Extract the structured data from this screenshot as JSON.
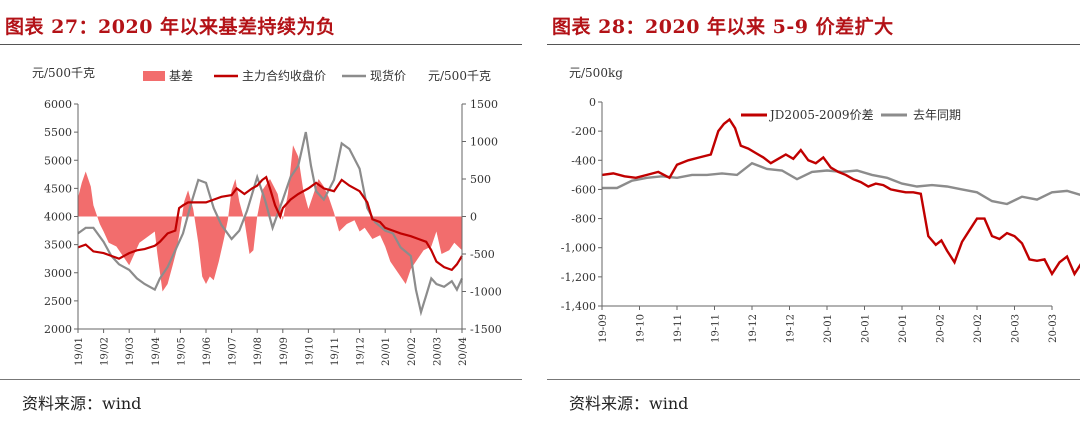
{
  "chart_data": [
    {
      "type": "area+line",
      "title": "图表 27：2020 年以来基差持续为负",
      "ylabel_left": "元/500千克",
      "ylabel_right": "元/500千克",
      "ylim_left": [
        2000,
        6000
      ],
      "yticks_left": [
        2000,
        2500,
        3000,
        3500,
        4000,
        4500,
        5000,
        5500,
        6000
      ],
      "ylim_right": [
        -1500,
        1500
      ],
      "yticks_right": [
        -1500,
        -1000,
        -500,
        0,
        500,
        1000,
        1500
      ],
      "x_ticks": [
        "19/01",
        "19/02",
        "19/03",
        "19/04",
        "19/05",
        "19/06",
        "19/07",
        "19/08",
        "19/09",
        "19/10",
        "19/11",
        "19/12",
        "20/01",
        "20/02",
        "20/03",
        "20/04"
      ],
      "legend_position": "top",
      "colors": {
        "basis": "#f26d6d",
        "futures": "#c00000",
        "spot": "#8c8c8c"
      },
      "series": [
        {
          "name": "基差",
          "axis": "right",
          "kind": "area",
          "x": [
            0,
            0.15,
            0.3,
            0.5,
            0.6,
            0.85,
            1.0,
            1.2,
            1.5,
            1.8,
            2.0,
            2.2,
            2.4,
            2.6,
            2.8,
            3.0,
            3.1,
            3.3,
            3.5,
            3.7,
            3.85,
            4.0,
            4.15,
            4.3,
            4.5,
            4.7,
            4.85,
            5.0,
            5.15,
            5.3,
            5.5,
            5.7,
            5.85,
            6.0,
            6.15,
            6.3,
            6.5,
            6.7,
            6.85,
            7.0,
            7.2,
            7.5,
            7.8,
            8.0,
            8.2,
            8.4,
            8.6,
            8.8,
            9.0,
            9.2,
            9.4,
            9.6,
            9.8,
            10.0,
            10.2,
            10.5,
            10.8,
            11.0,
            11.2,
            11.5,
            11.8,
            12.0,
            12.2,
            12.5,
            12.8,
            13.0,
            13.2,
            13.5,
            13.8,
            14.0,
            14.2,
            14.5,
            14.7,
            15.0
          ],
          "values": [
            250,
            450,
            600,
            400,
            150,
            -100,
            -200,
            -350,
            -400,
            -550,
            -650,
            -500,
            -350,
            -300,
            -250,
            -200,
            -500,
            -1000,
            -900,
            -650,
            -450,
            -150,
            200,
            350,
            100,
            -350,
            -800,
            -900,
            -800,
            -850,
            -600,
            -300,
            -50,
            350,
            500,
            200,
            -50,
            -500,
            -450,
            0,
            350,
            500,
            300,
            -50,
            300,
            950,
            800,
            350,
            100,
            300,
            500,
            400,
            250,
            50,
            -200,
            -100,
            -50,
            -200,
            -150,
            -300,
            -250,
            -400,
            -600,
            -750,
            -900,
            -700,
            -600,
            -450,
            -400,
            -200,
            -500,
            -450,
            -350,
            -450
          ]
        },
        {
          "name": "主力合约收盘价",
          "axis": "left",
          "kind": "line",
          "x": [
            0,
            0.3,
            0.6,
            1.0,
            1.3,
            1.6,
            2.0,
            2.3,
            2.6,
            3.0,
            3.2,
            3.5,
            3.8,
            3.95,
            4.1,
            4.3,
            4.6,
            5.0,
            5.3,
            5.6,
            6.0,
            6.2,
            6.5,
            6.8,
            7.0,
            7.2,
            7.35,
            7.5,
            7.7,
            7.9,
            8.0,
            8.3,
            8.6,
            9.0,
            9.3,
            9.6,
            10.0,
            10.3,
            10.6,
            11.0,
            11.3,
            11.5,
            11.8,
            12.0,
            12.3,
            12.6,
            13.0,
            13.3,
            13.6,
            13.8,
            14.0,
            14.3,
            14.6,
            14.8,
            15.0
          ],
          "values": [
            3450,
            3500,
            3380,
            3350,
            3300,
            3250,
            3350,
            3400,
            3420,
            3480,
            3550,
            3700,
            3750,
            4150,
            4200,
            4250,
            4250,
            4250,
            4300,
            4350,
            4380,
            4500,
            4400,
            4500,
            4550,
            4650,
            4700,
            4500,
            4200,
            4000,
            4150,
            4300,
            4400,
            4500,
            4600,
            4500,
            4450,
            4650,
            4550,
            4450,
            4250,
            3950,
            3900,
            3800,
            3750,
            3700,
            3650,
            3600,
            3550,
            3400,
            3200,
            3100,
            3050,
            3150,
            3300
          ]
        },
        {
          "name": "现货价",
          "axis": "left",
          "kind": "line",
          "x": [
            0,
            0.3,
            0.6,
            1.0,
            1.3,
            1.6,
            2.0,
            2.3,
            2.6,
            3.0,
            3.2,
            3.5,
            3.8,
            4.1,
            4.4,
            4.7,
            5.0,
            5.3,
            5.6,
            6.0,
            6.3,
            6.6,
            7.0,
            7.3,
            7.6,
            8.0,
            8.3,
            8.6,
            8.9,
            9.1,
            9.3,
            9.6,
            10.0,
            10.3,
            10.6,
            11.0,
            11.3,
            11.6,
            12.0,
            12.3,
            12.6,
            13.0,
            13.2,
            13.4,
            13.6,
            13.8,
            14.0,
            14.3,
            14.6,
            14.8,
            15.0
          ],
          "values": [
            3700,
            3800,
            3800,
            3550,
            3300,
            3150,
            3050,
            2900,
            2800,
            2700,
            2900,
            3100,
            3400,
            3700,
            4200,
            4650,
            4600,
            4150,
            3850,
            3600,
            3750,
            4100,
            4700,
            4300,
            3800,
            4300,
            4700,
            4900,
            5500,
            4900,
            4450,
            4300,
            4650,
            5300,
            5200,
            4850,
            4150,
            3900,
            3750,
            3700,
            3450,
            3300,
            2700,
            2300,
            2600,
            2900,
            2800,
            2750,
            2850,
            2700,
            2900
          ]
        }
      ]
    },
    {
      "type": "line",
      "title": "图表 28：2020 年以来 5-9 价差扩大",
      "ylabel": "元/500kg",
      "ylim": [
        -1400,
        0
      ],
      "yticks": [
        0,
        -200,
        -400,
        -600,
        -800,
        -1000,
        -1200,
        -1400
      ],
      "ytick_labels": [
        "0",
        "-200",
        "-400",
        "-600",
        "-800",
        "-1,000",
        "-1,200",
        "-1,400"
      ],
      "x_ticks": [
        "19-09",
        "19-10",
        "19-11",
        "19-11",
        "19-12",
        "19-12",
        "20-01",
        "20-01",
        "20-01",
        "20-02",
        "20-02",
        "20-03",
        "20-03"
      ],
      "legend_position": "top",
      "colors": {
        "spread": "#c00000",
        "last_year": "#8c8c8c"
      },
      "series": [
        {
          "name": "JD2005-2009价差",
          "x": [
            0,
            0.3,
            0.6,
            0.9,
            1.2,
            1.5,
            1.8,
            2.0,
            2.3,
            2.6,
            2.9,
            3.1,
            3.25,
            3.4,
            3.55,
            3.7,
            3.9,
            4.1,
            4.3,
            4.5,
            4.7,
            4.9,
            5.1,
            5.3,
            5.5,
            5.7,
            5.9,
            6.1,
            6.3,
            6.5,
            6.7,
            6.9,
            7.1,
            7.3,
            7.5,
            7.7,
            7.9,
            8.1,
            8.3,
            8.5,
            8.7,
            8.9,
            9.05,
            9.2,
            9.4,
            9.6,
            9.8,
            10.0,
            10.2,
            10.4,
            10.6,
            10.8,
            11.0,
            11.2,
            11.4,
            11.6,
            11.8,
            12.0,
            12.2,
            12.4,
            12.6,
            12.8,
            13.0
          ],
          "values": [
            -500,
            -490,
            -510,
            -520,
            -500,
            -480,
            -520,
            -430,
            -400,
            -380,
            -360,
            -200,
            -150,
            -120,
            -180,
            -300,
            -320,
            -350,
            -380,
            -420,
            -390,
            -360,
            -390,
            -330,
            -400,
            -420,
            -380,
            -450,
            -480,
            -500,
            -530,
            -550,
            -580,
            -560,
            -570,
            -600,
            -610,
            -620,
            -620,
            -630,
            -920,
            -980,
            -950,
            -1020,
            -1100,
            -960,
            -880,
            -800,
            -800,
            -920,
            -940,
            -900,
            -920,
            -970,
            -1080,
            -1090,
            -1080,
            -1180,
            -1100,
            -1060,
            -1180,
            -1100,
            -1050
          ]
        },
        {
          "name": "去年同期",
          "x": [
            0,
            0.4,
            0.8,
            1.2,
            1.6,
            2.0,
            2.4,
            2.8,
            3.2,
            3.6,
            4.0,
            4.4,
            4.8,
            5.2,
            5.6,
            6.0,
            6.4,
            6.8,
            7.2,
            7.6,
            8.0,
            8.4,
            8.8,
            9.2,
            9.6,
            10.0,
            10.4,
            10.8,
            11.2,
            11.6,
            12.0,
            12.4,
            12.8,
            13.0
          ],
          "values": [
            -590,
            -590,
            -540,
            -520,
            -510,
            -520,
            -500,
            -500,
            -490,
            -500,
            -420,
            -460,
            -470,
            -530,
            -480,
            -470,
            -480,
            -470,
            -500,
            -520,
            -560,
            -580,
            -570,
            -580,
            -600,
            -620,
            -680,
            -700,
            -650,
            -670,
            -620,
            -610,
            -640,
            -700
          ]
        }
      ]
    }
  ],
  "panels": {
    "left": {
      "title": "图表 27：2020 年以来基差持续为负",
      "source": "资料来源：wind",
      "unit_left": "元/500千克",
      "unit_right": "元/500千克",
      "legend": [
        "基差",
        "主力合约收盘价",
        "现货价"
      ]
    },
    "right": {
      "title": "图表 28：2020 年以来 5-9 价差扩大",
      "source": "资料来源：wind",
      "unit": "元/500kg",
      "legend": [
        "JD2005-2009价差",
        "去年同期"
      ]
    }
  }
}
